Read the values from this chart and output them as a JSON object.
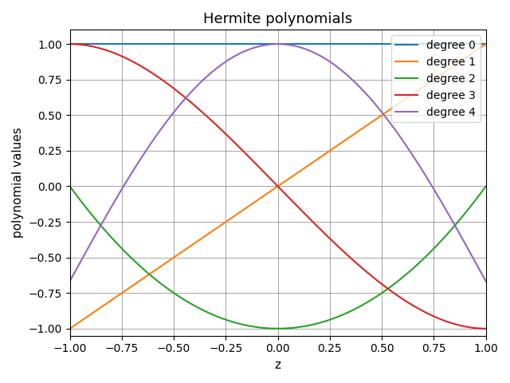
{
  "title": "Hermite polynomials",
  "xlabel": "z",
  "ylabel": "polynomial values",
  "xlim": [
    -1.0,
    1.0
  ],
  "ylim": [
    -1.05,
    1.1
  ],
  "grid": true,
  "legend_loc": "upper right",
  "series": [
    {
      "label": "degree 0",
      "color": "#1f77b4",
      "degree": 0
    },
    {
      "label": "degree 1",
      "color": "#ff7f0e",
      "degree": 1
    },
    {
      "label": "degree 2",
      "color": "#2ca02c",
      "degree": 2
    },
    {
      "label": "degree 3",
      "color": "#d62728",
      "degree": 3
    },
    {
      "label": "degree 4",
      "color": "#9467bd",
      "degree": 4
    }
  ],
  "n_points": 500,
  "background_color": "#ffffff"
}
